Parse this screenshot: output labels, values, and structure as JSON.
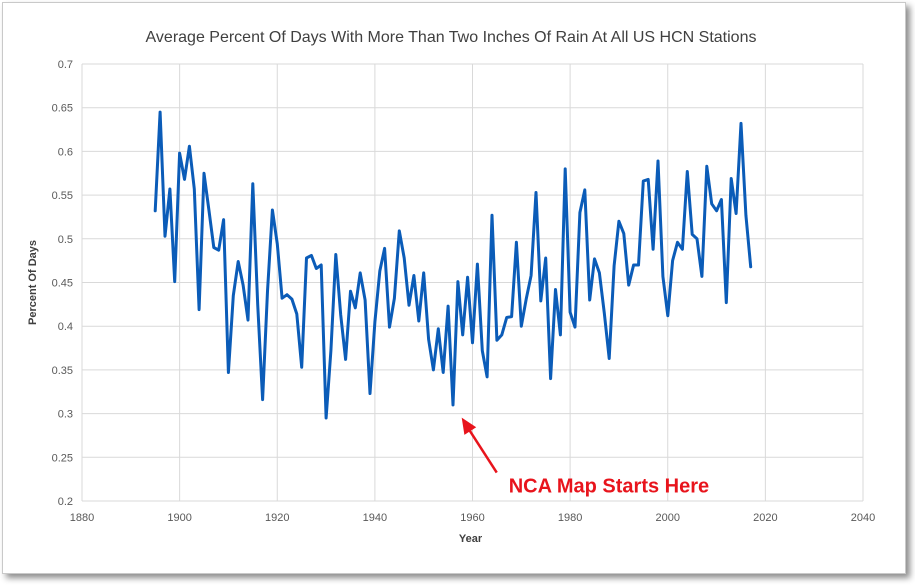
{
  "chart_data": {
    "type": "line",
    "title": "Average Percent Of Days With More Than Two Inches Of Rain At All US HCN Stations",
    "xlabel": "Year",
    "ylabel": "Percent Of Days",
    "xlim": [
      1880,
      2040
    ],
    "ylim": [
      0.2,
      0.7
    ],
    "x_ticks": [
      1880,
      1900,
      1920,
      1940,
      1960,
      1980,
      2000,
      2020,
      2040
    ],
    "y_ticks": [
      0.2,
      0.25,
      0.3,
      0.35,
      0.4,
      0.45,
      0.5,
      0.55,
      0.6,
      0.65,
      0.7
    ],
    "y_tick_labels": [
      "0.2",
      "0.25",
      "0.3",
      "0.35",
      "0.4",
      "0.45",
      "0.5",
      "0.55",
      "0.6",
      "0.65",
      "0.7"
    ],
    "grid": true,
    "line_color": "#0b5cb8",
    "x": [
      1895,
      1896,
      1897,
      1898,
      1899,
      1900,
      1901,
      1902,
      1903,
      1904,
      1905,
      1906,
      1907,
      1908,
      1909,
      1910,
      1911,
      1912,
      1913,
      1914,
      1915,
      1916,
      1917,
      1918,
      1919,
      1920,
      1921,
      1922,
      1923,
      1924,
      1925,
      1926,
      1927,
      1928,
      1929,
      1930,
      1931,
      1932,
      1933,
      1934,
      1935,
      1936,
      1937,
      1938,
      1939,
      1940,
      1941,
      1942,
      1943,
      1944,
      1945,
      1946,
      1947,
      1948,
      1949,
      1950,
      1951,
      1952,
      1953,
      1954,
      1955,
      1956,
      1957,
      1958,
      1959,
      1960,
      1961,
      1962,
      1963,
      1964,
      1965,
      1966,
      1967,
      1968,
      1969,
      1970,
      1971,
      1972,
      1973,
      1974,
      1975,
      1976,
      1977,
      1978,
      1979,
      1980,
      1981,
      1982,
      1983,
      1984,
      1985,
      1986,
      1987,
      1988,
      1989,
      1990,
      1991,
      1992,
      1993,
      1994,
      1995,
      1996,
      1997,
      1998,
      1999,
      2000,
      2001,
      2002,
      2003,
      2004,
      2005,
      2006,
      2007,
      2008,
      2009,
      2010,
      2011,
      2012,
      2013,
      2014,
      2015,
      2016,
      2017
    ],
    "series": [
      {
        "values": [
          0.532,
          0.645,
          0.503,
          0.557,
          0.451,
          0.598,
          0.568,
          0.606,
          0.557,
          0.419,
          0.575,
          0.533,
          0.49,
          0.487,
          0.522,
          0.347,
          0.435,
          0.474,
          0.447,
          0.407,
          0.563,
          0.425,
          0.316,
          0.44,
          0.533,
          0.494,
          0.432,
          0.436,
          0.431,
          0.414,
          0.353,
          0.478,
          0.481,
          0.466,
          0.47,
          0.295,
          0.372,
          0.482,
          0.413,
          0.362,
          0.44,
          0.421,
          0.461,
          0.43,
          0.323,
          0.405,
          0.463,
          0.489,
          0.399,
          0.432,
          0.509,
          0.478,
          0.424,
          0.458,
          0.406,
          0.461,
          0.385,
          0.35,
          0.397,
          0.347,
          0.423,
          0.31,
          0.451,
          0.39,
          0.456,
          0.381,
          0.471,
          0.372,
          0.342,
          0.527,
          0.384,
          0.39,
          0.41,
          0.411,
          0.496,
          0.4,
          0.431,
          0.458,
          0.553,
          0.429,
          0.478,
          0.34,
          0.442,
          0.39,
          0.58,
          0.416,
          0.399,
          0.53,
          0.556,
          0.43,
          0.477,
          0.461,
          0.415,
          0.363,
          0.469,
          0.52,
          0.506,
          0.447,
          0.47,
          0.47,
          0.566,
          0.568,
          0.488,
          0.589,
          0.457,
          0.412,
          0.475,
          0.496,
          0.488,
          0.577,
          0.505,
          0.5,
          0.457,
          0.583,
          0.54,
          0.532,
          0.545,
          0.427,
          0.569,
          0.529,
          0.632,
          0.527,
          0.468
        ]
      }
    ],
    "annotation": {
      "text": "NCA Map Starts Here",
      "color": "#e8141c",
      "points_to": {
        "x": 1958,
        "y": 0.3
      }
    }
  }
}
